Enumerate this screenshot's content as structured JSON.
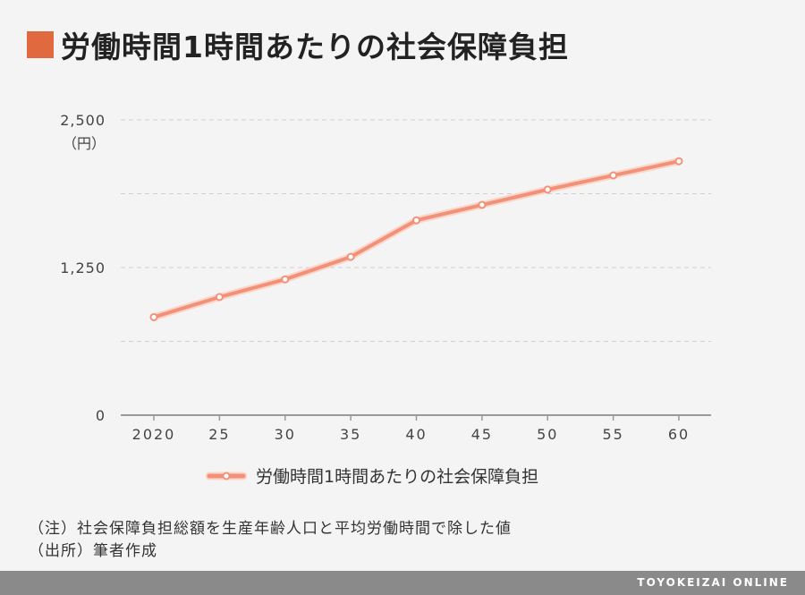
{
  "colors": {
    "accent": "#e0693f",
    "line": "#f2917a",
    "line_halo": "#fbd6c8",
    "grid": "#d0d0d0",
    "axis": "#999999"
  },
  "title": "労働時間1時間あたりの社会保障負担",
  "chart_data": {
    "type": "line",
    "title": "労働時間1時間あたりの社会保障負担",
    "y_unit": "（円）",
    "categories": [
      "2020",
      "25",
      "30",
      "35",
      "40",
      "45",
      "50",
      "55",
      "60"
    ],
    "x": [
      2020,
      2025,
      2030,
      2035,
      2040,
      2045,
      2050,
      2055,
      2060
    ],
    "series": [
      {
        "name": "労働時間1時間あたりの社会保障負担",
        "values": [
          830,
          1000,
          1150,
          1340,
          1650,
          1780,
          1910,
          2030,
          2150
        ]
      }
    ],
    "ylim": [
      0,
      2500
    ],
    "yticks": [
      0,
      1250,
      2500
    ],
    "ytick_labels": [
      "0",
      "1,250",
      "2,500"
    ],
    "minor_gridlines": [
      625,
      1875
    ],
    "grid": true,
    "legend": "bottom"
  },
  "notes": {
    "note": "（注）社会保障負担総額を生産年齢人口と平均労働時間で除した値",
    "source": "（出所）筆者作成"
  },
  "footer": {
    "brand": "TOYOKEIZAI ONLINE"
  }
}
